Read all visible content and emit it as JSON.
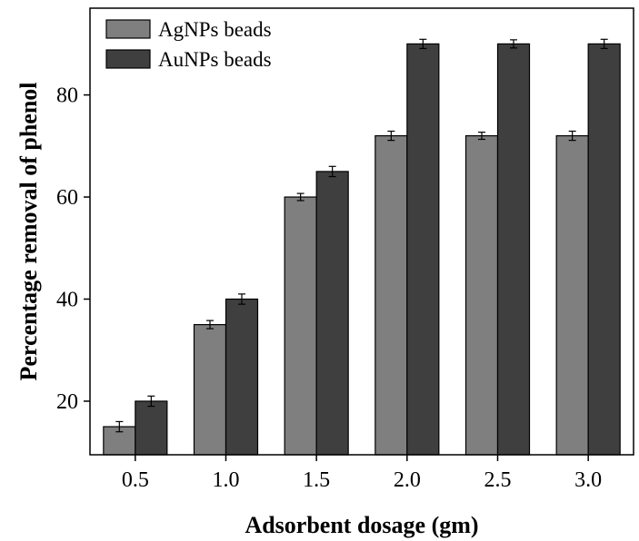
{
  "chart_data": {
    "type": "bar",
    "xlabel": "Adsorbent dosage (gm)",
    "ylabel": "Percentage removal of phenol",
    "categories": [
      "0.5",
      "1.0",
      "1.5",
      "2.0",
      "2.5",
      "3.0"
    ],
    "series": [
      {
        "name": "AgNPs beads",
        "color": "#7f7f7f",
        "values": [
          15,
          35,
          60,
          72,
          72,
          72
        ],
        "errors": [
          1,
          0.8,
          0.7,
          0.9,
          0.7,
          0.9
        ]
      },
      {
        "name": "AuNPs beads",
        "color": "#3f3f3f",
        "values": [
          20,
          40,
          65,
          90,
          90,
          90
        ],
        "errors": [
          1,
          1,
          1,
          0.9,
          0.8,
          0.9
        ]
      }
    ],
    "yticks": [
      20,
      40,
      60,
      80
    ],
    "ylim": [
      9.5,
      97
    ],
    "legend": "top-left",
    "grid": false
  }
}
